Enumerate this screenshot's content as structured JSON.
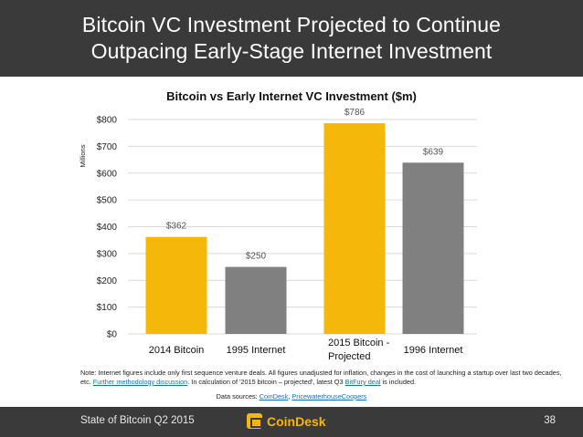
{
  "header": {
    "title_line1": "Bitcoin VC Investment Projected to Continue",
    "title_line2": "Outpacing Early-Stage Internet Investment"
  },
  "chart_data": {
    "type": "bar",
    "title": "Bitcoin vs Early Internet VC Investment ($m)",
    "ylabel": "Millions",
    "xlabel": "",
    "ylim": [
      0,
      800
    ],
    "yticks": [
      0,
      100,
      200,
      300,
      400,
      500,
      600,
      700,
      800
    ],
    "ytick_labels": [
      "$0",
      "$100",
      "$200",
      "$300",
      "$400",
      "$500",
      "$600",
      "$700",
      "$800"
    ],
    "grid": true,
    "categories": [
      "2014 Bitcoin",
      "1995 Internet",
      "2015 Bitcoin - Projected",
      "1996 Internet"
    ],
    "category_lines": [
      [
        "2014 Bitcoin"
      ],
      [
        "1995 Internet"
      ],
      [
        "2015 Bitcoin -",
        "Projected"
      ],
      [
        "1996 Internet"
      ]
    ],
    "values": [
      362,
      250,
      786,
      639
    ],
    "value_labels": [
      "$362",
      "$250",
      "$786",
      "$639"
    ],
    "colors": [
      "#f5b70a",
      "#808080",
      "#f5b70a",
      "#808080"
    ]
  },
  "note": {
    "prefix": "Note: Internet figures include only first sequence venture deals. All figures unadjusted for inflation, changes in the cost of launching a startup over last two decades, etc. ",
    "link1": "Further methodology discussion",
    "middle": ". In calculation of '2015 bitcoin – projected', latest Q3 ",
    "link2": "BitFury deal",
    "suffix": " is included."
  },
  "sources": {
    "prefix": "Data sources: ",
    "link1": "CoinDesk",
    "separator": ", ",
    "link2": "PricewaterhouseCoopers"
  },
  "footer": {
    "left_text": "State of Bitcoin Q2 2015",
    "brand": "CoinDesk",
    "page_number": "38"
  }
}
